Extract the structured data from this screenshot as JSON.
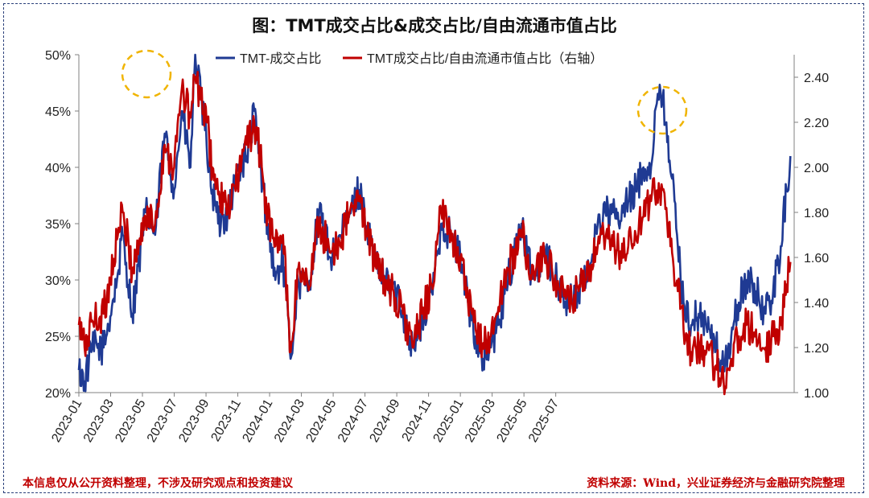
{
  "chart_data": {
    "type": "line",
    "title": "图：TMT成交占比&成交占比/自由流通市值占比",
    "x_tick_labels": [
      "2023-01",
      "2023-03",
      "2023-05",
      "2023-07",
      "2023-09",
      "2023-11",
      "2024-01",
      "2024-03",
      "2024-05",
      "2024-07",
      "2024-09",
      "2024-11",
      "2025-01",
      "2025-03",
      "2025-05",
      "2025-07"
    ],
    "y_left": {
      "ticks": [
        "20%",
        "25%",
        "30%",
        "35%",
        "40%",
        "45%",
        "50%"
      ],
      "range": [
        20,
        50
      ],
      "unit": "%"
    },
    "y_right": {
      "ticks": [
        "1.00",
        "1.20",
        "1.40",
        "1.60",
        "1.80",
        "2.00",
        "2.20",
        "2.40"
      ],
      "range": [
        1.0,
        2.5
      ]
    },
    "series": [
      {
        "name": "TMT-成交占比",
        "axis": "left",
        "color": "#1f3a93",
        "anchors": [
          [
            2023.0,
            22
          ],
          [
            2023.03,
            21
          ],
          [
            2023.07,
            24
          ],
          [
            2023.13,
            24
          ],
          [
            2023.2,
            30
          ],
          [
            2023.23,
            34
          ],
          [
            2023.28,
            27
          ],
          [
            2023.35,
            36
          ],
          [
            2023.4,
            34
          ],
          [
            2023.45,
            43
          ],
          [
            2023.5,
            38
          ],
          [
            2023.54,
            45
          ],
          [
            2023.585,
            40
          ],
          [
            2023.61,
            50
          ],
          [
            2023.64,
            46
          ],
          [
            2023.67,
            42
          ],
          [
            2023.7,
            38
          ],
          [
            2023.73,
            35
          ],
          [
            2023.78,
            36
          ],
          [
            2023.84,
            40
          ],
          [
            2023.88,
            41
          ],
          [
            2023.92,
            45
          ],
          [
            2023.95,
            40
          ],
          [
            2023.99,
            35
          ],
          [
            2024.03,
            30
          ],
          [
            2024.07,
            32
          ],
          [
            2024.11,
            23
          ],
          [
            2024.15,
            30
          ],
          [
            2024.2,
            29
          ],
          [
            2024.26,
            36
          ],
          [
            2024.32,
            32
          ],
          [
            2024.38,
            34
          ],
          [
            2024.42,
            36
          ],
          [
            2024.47,
            38
          ],
          [
            2024.52,
            34
          ],
          [
            2024.56,
            31
          ],
          [
            2024.61,
            30
          ],
          [
            2024.66,
            29
          ],
          [
            2024.7,
            27
          ],
          [
            2024.75,
            24
          ],
          [
            2024.8,
            26
          ],
          [
            2024.85,
            29
          ],
          [
            2024.9,
            35
          ],
          [
            2024.95,
            34
          ],
          [
            2025.0,
            32
          ],
          [
            2025.04,
            28
          ],
          [
            2025.08,
            25
          ],
          [
            2025.12,
            23
          ],
          [
            2025.16,
            24
          ],
          [
            2025.2,
            26
          ],
          [
            2025.25,
            30
          ],
          [
            2025.29,
            33
          ],
          [
            2025.32,
            35
          ],
          [
            2025.35,
            32
          ],
          [
            2025.39,
            30
          ],
          [
            2025.44,
            33
          ],
          [
            2025.48,
            31
          ],
          [
            2025.52,
            29
          ],
          [
            2025.57,
            28
          ],
          [
            2025.62,
            29
          ],
          [
            2025.66,
            30
          ],
          [
            2025.72,
            35
          ],
          [
            2025.76,
            36
          ],
          [
            2025.8,
            36
          ],
          [
            2025.83,
            35
          ],
          [
            2025.88,
            37
          ],
          [
            2025.92,
            38
          ],
          [
            2025.96,
            40
          ],
          [
            2026.0,
            40
          ],
          [
            2026.02,
            45
          ],
          [
            2026.04,
            46
          ],
          [
            2026.06,
            46
          ],
          [
            2026.08,
            44
          ],
          [
            2026.11,
            39
          ],
          [
            2026.14,
            33
          ],
          [
            2026.17,
            28
          ],
          [
            2026.21,
            26
          ],
          [
            2026.25,
            27
          ],
          [
            2026.29,
            26
          ],
          [
            2026.34,
            24
          ],
          [
            2026.38,
            22
          ],
          [
            2026.42,
            25
          ],
          [
            2026.46,
            28
          ],
          [
            2026.5,
            30
          ],
          [
            2026.55,
            29
          ],
          [
            2026.6,
            27
          ],
          [
            2026.64,
            29
          ],
          [
            2026.68,
            33
          ],
          [
            2026.71,
            38
          ],
          [
            2026.73,
            41
          ]
        ]
      },
      {
        "name": "TMT成交占比/自由流通市值占比（右轴）",
        "axis": "right",
        "color": "#c00000",
        "anchors": [
          [
            2023.0,
            1.3
          ],
          [
            2023.03,
            1.2
          ],
          [
            2023.07,
            1.32
          ],
          [
            2023.13,
            1.35
          ],
          [
            2023.2,
            1.68
          ],
          [
            2023.23,
            1.8
          ],
          [
            2023.28,
            1.55
          ],
          [
            2023.35,
            1.78
          ],
          [
            2023.4,
            1.75
          ],
          [
            2023.45,
            2.1
          ],
          [
            2023.5,
            2.0
          ],
          [
            2023.54,
            2.35
          ],
          [
            2023.585,
            2.22
          ],
          [
            2023.61,
            2.4
          ],
          [
            2023.64,
            2.3
          ],
          [
            2023.67,
            2.2
          ],
          [
            2023.7,
            2.0
          ],
          [
            2023.73,
            1.88
          ],
          [
            2023.78,
            1.8
          ],
          [
            2023.84,
            1.98
          ],
          [
            2023.88,
            2.1
          ],
          [
            2023.92,
            2.2
          ],
          [
            2023.95,
            2.05
          ],
          [
            2023.99,
            1.78
          ],
          [
            2024.03,
            1.65
          ],
          [
            2024.07,
            1.7
          ],
          [
            2024.11,
            1.18
          ],
          [
            2024.15,
            1.55
          ],
          [
            2024.2,
            1.48
          ],
          [
            2024.26,
            1.75
          ],
          [
            2024.32,
            1.62
          ],
          [
            2024.38,
            1.7
          ],
          [
            2024.42,
            1.8
          ],
          [
            2024.47,
            1.85
          ],
          [
            2024.52,
            1.7
          ],
          [
            2024.56,
            1.55
          ],
          [
            2024.61,
            1.5
          ],
          [
            2024.66,
            1.42
          ],
          [
            2024.7,
            1.35
          ],
          [
            2024.75,
            1.2
          ],
          [
            2024.8,
            1.35
          ],
          [
            2024.85,
            1.48
          ],
          [
            2024.9,
            1.8
          ],
          [
            2024.95,
            1.72
          ],
          [
            2025.0,
            1.6
          ],
          [
            2025.04,
            1.4
          ],
          [
            2025.08,
            1.28
          ],
          [
            2025.12,
            1.22
          ],
          [
            2025.16,
            1.25
          ],
          [
            2025.2,
            1.38
          ],
          [
            2025.25,
            1.55
          ],
          [
            2025.29,
            1.62
          ],
          [
            2025.32,
            1.72
          ],
          [
            2025.35,
            1.6
          ],
          [
            2025.39,
            1.5
          ],
          [
            2025.44,
            1.62
          ],
          [
            2025.48,
            1.55
          ],
          [
            2025.52,
            1.45
          ],
          [
            2025.57,
            1.4
          ],
          [
            2025.62,
            1.45
          ],
          [
            2025.66,
            1.5
          ],
          [
            2025.72,
            1.65
          ],
          [
            2025.76,
            1.68
          ],
          [
            2025.8,
            1.65
          ],
          [
            2025.83,
            1.62
          ],
          [
            2025.88,
            1.65
          ],
          [
            2025.92,
            1.7
          ],
          [
            2025.96,
            1.78
          ],
          [
            2026.0,
            1.85
          ],
          [
            2026.02,
            1.88
          ],
          [
            2026.04,
            1.93
          ],
          [
            2026.06,
            1.9
          ],
          [
            2026.08,
            1.82
          ],
          [
            2026.11,
            1.62
          ],
          [
            2026.14,
            1.45
          ],
          [
            2026.17,
            1.28
          ],
          [
            2026.21,
            1.18
          ],
          [
            2026.25,
            1.22
          ],
          [
            2026.29,
            1.18
          ],
          [
            2026.34,
            1.12
          ],
          [
            2026.38,
            1.05
          ],
          [
            2026.42,
            1.15
          ],
          [
            2026.46,
            1.25
          ],
          [
            2026.5,
            1.3
          ],
          [
            2026.55,
            1.28
          ],
          [
            2026.6,
            1.2
          ],
          [
            2026.64,
            1.25
          ],
          [
            2026.68,
            1.3
          ],
          [
            2026.71,
            1.48
          ],
          [
            2026.73,
            1.58
          ]
        ]
      }
    ],
    "annotations": [
      "peak-circle-2023-04",
      "peak-circle-2025-02"
    ]
  },
  "footer": {
    "left": "本信息仅从公开资料整理，不涉及研究观点和投资建议",
    "right": "资料来源：Wind，兴业证券经济与金融研究院整理"
  }
}
